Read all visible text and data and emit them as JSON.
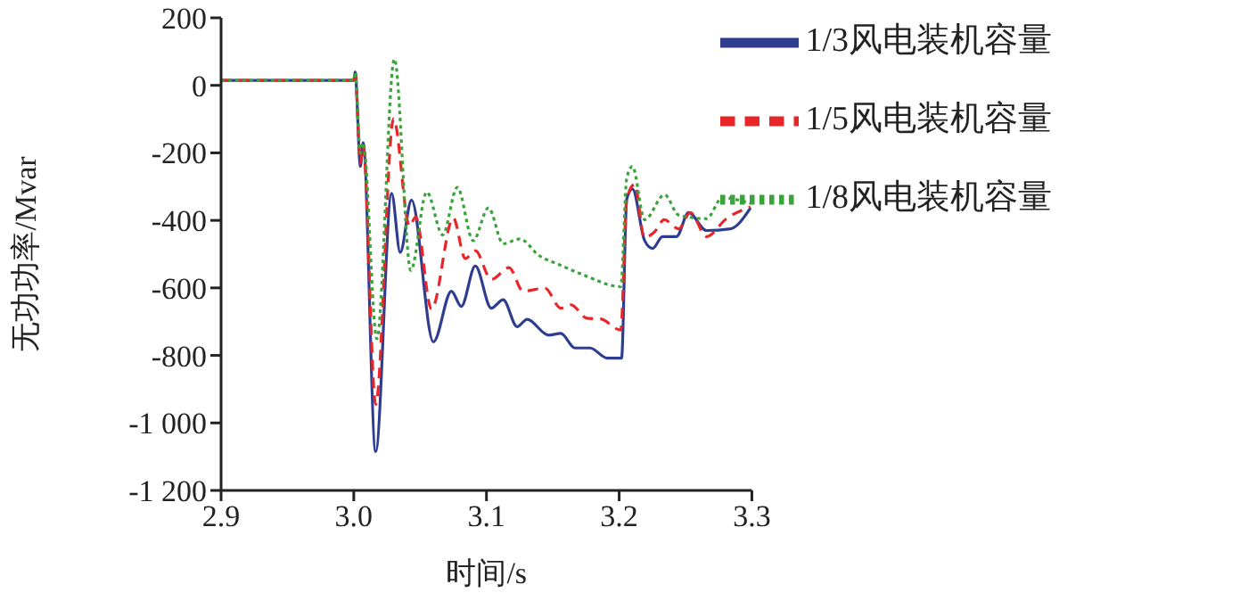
{
  "chart_data": {
    "type": "line",
    "xlabel": "时间/s",
    "ylabel": "无功功率/Mvar",
    "xlim": [
      2.9,
      3.3
    ],
    "xticks": [
      2.9,
      {
        "value": 3,
        "label": "3.0"
      },
      3.1,
      3.2,
      3.3
    ],
    "ylim": [
      -1200,
      200
    ],
    "yticks": [
      200,
      0,
      -200,
      -400,
      -600,
      -800,
      {
        "value": -1000,
        "label": "-1 000"
      },
      {
        "value": -1200,
        "label": "-1 200"
      }
    ],
    "grid": false,
    "legend": "top right",
    "series": [
      {
        "name": "1/3风电装机容量",
        "color": "#2f3d91",
        "line_style": "solid",
        "x": [
          2.9,
          3.0,
          3.001,
          3.005,
          3.007,
          3.0165,
          3.0285,
          3.035,
          3.0435,
          3.06,
          3.0736,
          3.081,
          3.0916,
          3.1036,
          3.1126,
          3.1231,
          3.1306,
          3.1468,
          3.156,
          3.1667,
          3.178,
          3.191,
          3.2018,
          3.2057,
          3.21,
          3.2192,
          3.2252,
          3.2327,
          3.2432,
          3.2523,
          3.2658,
          3.2838,
          3.299
        ],
        "values": [
          15,
          15,
          40,
          -240,
          -170,
          -1085,
          -320,
          -495,
          -340,
          -760,
          -610,
          -655,
          -535,
          -660,
          -635,
          -715,
          -693,
          -740,
          -735,
          -778,
          -778,
          -808,
          -808,
          -337,
          -307,
          -460,
          -483,
          -448,
          -448,
          -377,
          -430,
          -425,
          -363
        ]
      },
      {
        "name": "1/5风电装机容量",
        "color": "#e8262a",
        "line_style": "dashed",
        "x": [
          2.9,
          3.0,
          3.001,
          3.005,
          3.007,
          3.0165,
          3.03,
          3.042,
          3.0466,
          3.0586,
          3.075,
          3.084,
          3.0916,
          3.1036,
          3.117,
          3.1276,
          3.1441,
          3.156,
          3.1637,
          3.1757,
          3.186,
          3.2012,
          3.2057,
          3.2117,
          3.219,
          3.2267,
          3.234,
          3.2447,
          3.2537,
          3.2658,
          3.2808,
          3.299
        ],
        "values": [
          15,
          15,
          40,
          -230,
          -180,
          -945,
          -99,
          -417,
          -390,
          -663,
          -393,
          -513,
          -490,
          -575,
          -540,
          -610,
          -601,
          -660,
          -650,
          -690,
          -692,
          -725,
          -337,
          -293,
          -451,
          -434,
          -398,
          -425,
          -377,
          -448,
          -395,
          -360
        ]
      },
      {
        "name": "1/8风电装机容量",
        "color": "#3aa43a",
        "line_style": "dotted",
        "x": [
          2.9,
          3.0,
          3.001,
          3.005,
          3.007,
          3.0174,
          3.0306,
          3.043,
          3.055,
          3.067,
          3.078,
          3.09,
          3.1015,
          3.1126,
          3.1252,
          3.1396,
          3.1547,
          3.1727,
          3.2012,
          3.2057,
          3.21,
          3.2192,
          3.2342,
          3.2447,
          3.2658,
          3.2778,
          3.299
        ],
        "values": [
          15,
          15,
          40,
          -200,
          -170,
          -751,
          78,
          -548,
          -316,
          -443,
          -302,
          -460,
          -363,
          -469,
          -455,
          -504,
          -531,
          -561,
          -596,
          -275,
          -240,
          -398,
          -324,
          -384,
          -395,
          -333,
          -350
        ]
      }
    ]
  }
}
